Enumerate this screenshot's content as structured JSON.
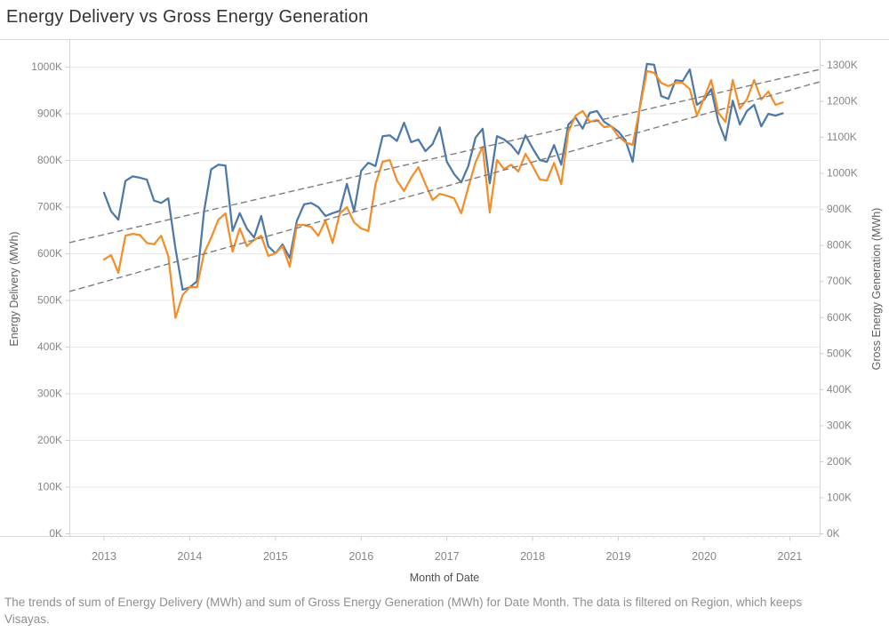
{
  "title": "Energy Delivery vs Gross Energy Generation",
  "caption": "The trends of sum of Energy Delivery (MWh) and sum of Gross Energy Generation (MWh) for Date Month. The data is filtered on Region, which keeps Visayas.",
  "colors": {
    "energy_delivery": "#4e79a7",
    "gross_energy_generation": "#f28e2b",
    "trend_line": "#7d7d7d",
    "gridline": "#e9e9e9",
    "border": "#d7d7d7",
    "tick": "#cfcfcf",
    "tick_label": "#868686"
  },
  "chart_data": {
    "type": "line",
    "title": "Energy Delivery vs Gross Energy Generation",
    "frequency": "monthly",
    "x_start": "2013-01",
    "x_end": "2020-12",
    "units": "thousand MWh (values below are in K)",
    "x_axis": {
      "label": "Month of Date",
      "tick_labels": [
        "2013",
        "2014",
        "2015",
        "2016",
        "2017",
        "2018",
        "2019",
        "2020",
        "2021"
      ]
    },
    "y_left": {
      "label": "Energy Delivery (MWh)",
      "min": 0,
      "max": 1000,
      "step": 100,
      "tick_labels": [
        "0K",
        "100K",
        "200K",
        "300K",
        "400K",
        "500K",
        "600K",
        "700K",
        "800K",
        "900K",
        "1000K"
      ]
    },
    "y_right": {
      "label": "Gross Energy Generation (MWh)",
      "min": 0,
      "max": 1300,
      "step": 100,
      "tick_labels": [
        "0K",
        "100K",
        "200K",
        "300K",
        "400K",
        "500K",
        "600K",
        "700K",
        "800K",
        "900K",
        "1000K",
        "1100K",
        "1200K",
        "1300K"
      ]
    },
    "legend": "none",
    "grid": "horizontal-left-axis-only",
    "series": [
      {
        "name": "Energy Delivery (MWh)",
        "axis": "left",
        "color": "#4e79a7",
        "values": [
          730,
          690,
          672,
          755,
          765,
          762,
          758,
          713,
          708,
          718,
          610,
          522,
          527,
          540,
          690,
          780,
          790,
          788,
          648,
          686,
          653,
          634,
          680,
          615,
          600,
          619,
          590,
          670,
          705,
          708,
          699,
          680,
          686,
          691,
          749,
          690,
          777,
          794,
          787,
          851,
          853,
          841,
          880,
          838,
          844,
          819,
          834,
          870,
          796,
          770,
          752,
          787,
          848,
          867,
          750,
          851,
          844,
          832,
          813,
          853,
          825,
          800,
          796,
          832,
          790,
          876,
          891,
          867,
          901,
          905,
          882,
          872,
          861,
          842,
          796,
          914,
          1006,
          1004,
          937,
          931,
          971,
          969,
          994,
          918,
          929,
          952,
          882,
          842,
          927,
          876,
          905,
          918,
          872,
          899,
          895,
          900
        ]
      },
      {
        "name": "Gross Energy Generation (MWh)",
        "axis": "right",
        "color": "#f28e2b",
        "values": [
          760,
          772,
          723,
          826,
          831,
          828,
          806,
          802,
          826,
          769,
          598,
          661,
          683,
          683,
          777,
          820,
          870,
          888,
          782,
          846,
          797,
          814,
          826,
          770,
          777,
          797,
          740,
          856,
          856,
          850,
          826,
          868,
          806,
          888,
          905,
          863,
          846,
          839,
          969,
          1031,
          1036,
          979,
          950,
          987,
          1016,
          969,
          925,
          942,
          937,
          930,
          888,
          960,
          1030,
          1073,
          890,
          1036,
          1011,
          1023,
          1004,
          1053,
          1019,
          982,
          979,
          1028,
          969,
          1115,
          1159,
          1172,
          1142,
          1147,
          1127,
          1130,
          1102,
          1085,
          1078,
          1180,
          1283,
          1278,
          1250,
          1241,
          1250,
          1250,
          1233,
          1159,
          1208,
          1258,
          1167,
          1142,
          1258,
          1179,
          1204,
          1258,
          1204,
          1226,
          1189,
          1196
        ]
      }
    ],
    "trend_lines": [
      {
        "series": "Energy Delivery (MWh)",
        "axis": "left",
        "start_value": 623,
        "end_value": 994,
        "style": "dashed",
        "color": "#7d7d7d"
      },
      {
        "series": "Gross Energy Generation (MWh)",
        "axis": "right",
        "start_value": 671,
        "end_value": 1253,
        "style": "dashed",
        "color": "#7d7d7d"
      }
    ]
  }
}
